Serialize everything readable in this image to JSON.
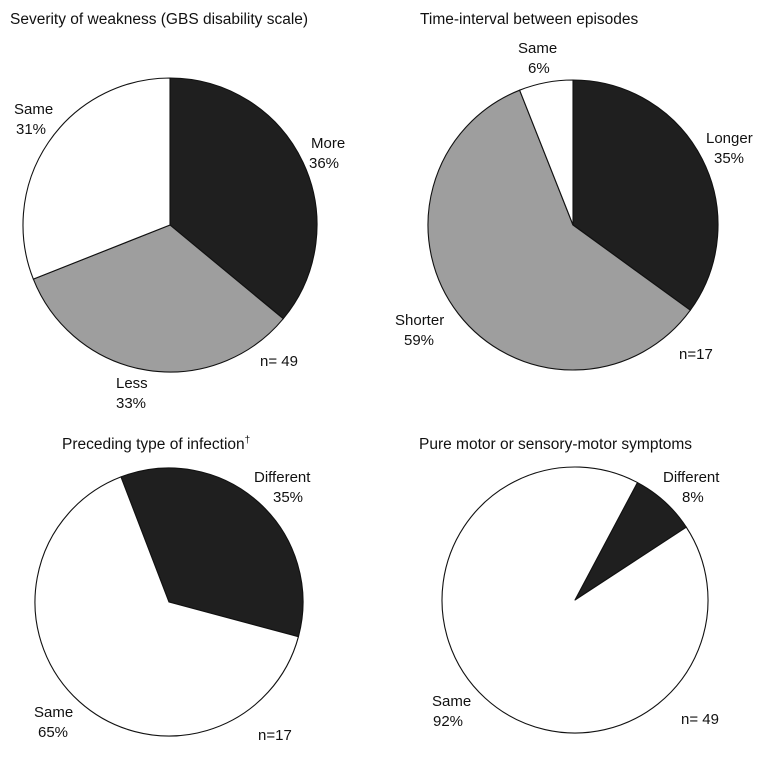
{
  "chart_data": [
    {
      "type": "pie",
      "title": "Severity of weakness (GBS disability scale)",
      "n_label": "n= 49",
      "slices": [
        {
          "label": "More",
          "pct_label": "36%",
          "value": 36,
          "color": "#1f1f1f"
        },
        {
          "label": "Less",
          "pct_label": "33%",
          "value": 33,
          "color": "#9e9e9e"
        },
        {
          "label": "Same",
          "pct_label": "31%",
          "value": 31,
          "color": "#ffffff"
        }
      ]
    },
    {
      "type": "pie",
      "title": "Time-interval between episodes",
      "n_label": "n=17",
      "slices": [
        {
          "label": "Longer",
          "pct_label": "35%",
          "value": 35,
          "color": "#1f1f1f"
        },
        {
          "label": "Shorter",
          "pct_label": "59%",
          "value": 59,
          "color": "#9e9e9e"
        },
        {
          "label": "Same",
          "pct_label": "6%",
          "value": 6,
          "color": "#ffffff"
        }
      ]
    },
    {
      "type": "pie",
      "title": "Preceding type of infection",
      "title_mark": "†",
      "n_label": "n=17",
      "slices": [
        {
          "label": "Different",
          "pct_label": "35%",
          "value": 35,
          "color": "#1f1f1f"
        },
        {
          "label": "Same",
          "pct_label": "65%",
          "value": 65,
          "color": "#ffffff"
        }
      ]
    },
    {
      "type": "pie",
      "title": "Pure motor or sensory-motor symptoms",
      "n_label": "n= 49",
      "slices": [
        {
          "label": "Different",
          "pct_label": "8%",
          "value": 8,
          "color": "#1f1f1f"
        },
        {
          "label": "Same",
          "pct_label": "92%",
          "value": 92,
          "color": "#ffffff"
        }
      ]
    }
  ]
}
